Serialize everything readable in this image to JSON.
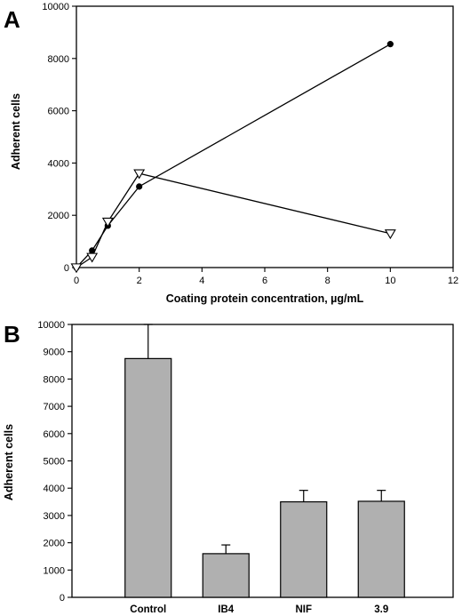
{
  "chart_data": [
    {
      "type": "line",
      "panel_label": "A",
      "xlabel": "Coating protein concentration, µg/mL",
      "ylabel": "Adherent cells",
      "xlim": [
        0,
        12
      ],
      "ylim": [
        0,
        10000
      ],
      "x_ticks": [
        0,
        2,
        4,
        6,
        8,
        10,
        12
      ],
      "y_ticks": [
        0,
        2000,
        4000,
        6000,
        8000,
        10000
      ],
      "grid": false,
      "series": [
        {
          "marker": "filled-circle",
          "color": "#000000",
          "points": [
            [
              0,
              0
            ],
            [
              0.5,
              650
            ],
            [
              1,
              1600
            ],
            [
              2,
              3100
            ],
            [
              10,
              8550
            ]
          ]
        },
        {
          "marker": "open-down-triangle",
          "color": "#000000",
          "points": [
            [
              0,
              0
            ],
            [
              0.5,
              400
            ],
            [
              1,
              1750
            ],
            [
              2,
              3600
            ],
            [
              10,
              1300
            ]
          ]
        }
      ]
    },
    {
      "type": "bar",
      "panel_label": "B",
      "xlabel": "",
      "ylabel": "Adherent cells",
      "ylim": [
        0,
        10000
      ],
      "y_ticks": [
        0,
        1000,
        2000,
        3000,
        4000,
        5000,
        6000,
        7000,
        8000,
        9000,
        10000
      ],
      "categories": [
        "Control",
        "IB4",
        "NIF",
        "3.9"
      ],
      "values": [
        8750,
        1600,
        3500,
        3520
      ],
      "errors": [
        1300,
        320,
        420,
        400
      ],
      "bar_color": "#b0b0b0",
      "grid": false
    }
  ]
}
